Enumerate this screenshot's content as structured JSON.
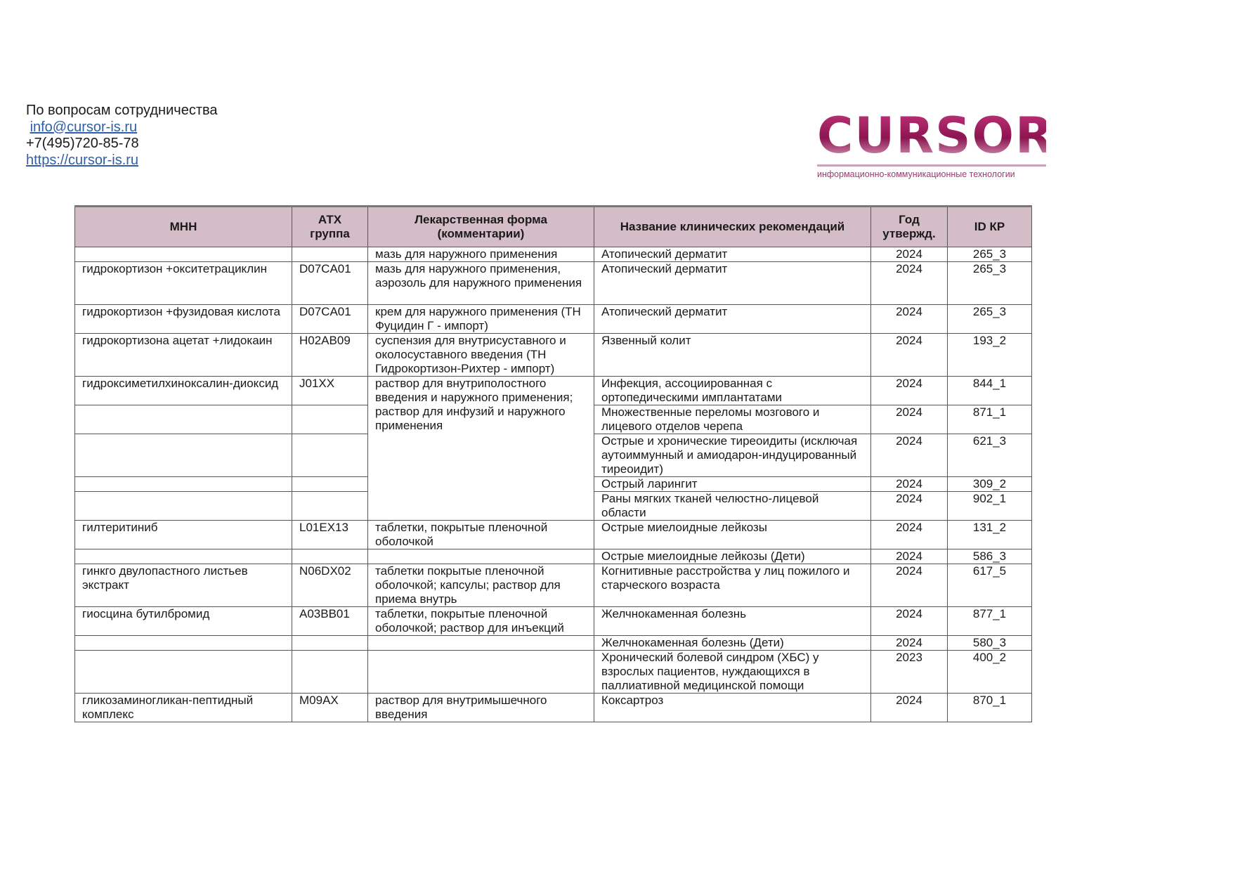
{
  "contact": {
    "heading": "По вопросам сотрудничества",
    "email": "info@cursor-is.ru",
    "phone": "+7(495)720-85-78",
    "website": "https://cursor-is.ru"
  },
  "logo": {
    "word": "CURSOR",
    "tagline": "информационно-коммуникационные технологии",
    "color": "#9b1b5f"
  },
  "table": {
    "header_bg": "#d5bdc8",
    "columns": [
      "МНН",
      "АТХ группа",
      "Лекарственная форма (комментарии)",
      "Название клинических рекомендаций",
      "Год утвержд.",
      "ID КР"
    ],
    "rows": [
      {
        "mnn": "",
        "atc": "",
        "form": "мазь для наружного применения",
        "rec": "Атопический дерматит",
        "year": "2024",
        "id": "265_3"
      },
      {
        "mnn": "гидрокортизон +окситетрациклин",
        "atc": "D07CA01",
        "form": "мазь для наружного применения, аэрозоль для наружного применения",
        "rec": "Атопический дерматит",
        "year": "2024",
        "id": "265_3"
      },
      {
        "mnn": "гидрокортизон +фузидовая кислота",
        "atc": "D07CA01",
        "form": "крем для наружного применения (ТН Фуцидин Г - импорт)",
        "rec": "Атопический дерматит",
        "year": "2024",
        "id": "265_3"
      },
      {
        "mnn": "гидрокортизона ацетат +лидокаин",
        "atc": "H02AB09",
        "form": "суспензия для внутрисуставного и околосуставного введения (ТН Гидрокортизон-Рихтер - импорт)",
        "rec": "Язвенный колит",
        "year": "2024",
        "id": "193_2"
      },
      {
        "mnn": "гидроксиметилхиноксалин-диоксид",
        "atc": "J01XX",
        "form": "раствор для внутриполостного введения и наружного применения; раствор для инфузий и наружного применения",
        "rec": "Инфекция, ассоциированная с ортопедическими имплантатами",
        "year": "2024",
        "id": "844_1"
      },
      {
        "mnn": "",
        "atc": "",
        "rec": "Множественные переломы мозгового и лицевого отделов черепа",
        "year": "2024",
        "id": "871_1"
      },
      {
        "mnn": "",
        "atc": "",
        "rec": "Острые и хронические тиреоидиты (исключая аутоиммунный и амиодарон-индуцированный тиреоидит)",
        "year": "2024",
        "id": "621_3"
      },
      {
        "mnn": "",
        "atc": "",
        "rec": "Острый ларингит",
        "year": "2024",
        "id": "309_2"
      },
      {
        "mnn": "",
        "atc": "",
        "rec": "Раны мягких тканей челюстно-лицевой области",
        "year": "2024",
        "id": "902_1"
      },
      {
        "mnn": "гилтеритиниб",
        "atc": "L01EX13",
        "form": "таблетки, покрытые пленочной оболочкой",
        "rec": "Острые миелоидные лейкозы",
        "year": "2024",
        "id": "131_2"
      },
      {
        "mnn": "",
        "atc": "",
        "form": "",
        "rec": "Острые миелоидные лейкозы (Дети)",
        "year": "2024",
        "id": "586_3"
      },
      {
        "mnn": "гинкго двулопастного листьев экстракт",
        "atc": "N06DX02",
        "form": "таблетки покрытые пленочной оболочкой; капсулы; раствор для приема внутрь",
        "rec": "Когнитивные расстройства у лиц пожилого и старческого возраста",
        "year": "2024",
        "id": "617_5"
      },
      {
        "mnn": "гиосцина бутилбромид",
        "atc": "A03BB01",
        "form": "таблетки, покрытые пленочной оболочкой; раствор для инъекций",
        "rec": "Желчнокаменная болезнь",
        "year": "2024",
        "id": "877_1"
      },
      {
        "mnn": "",
        "atc": "",
        "form": "",
        "rec": "Желчнокаменная болезнь (Дети)",
        "year": "2024",
        "id": "580_3"
      },
      {
        "mnn": "",
        "atc": "",
        "form": "",
        "rec": "Хронический болевой синдром (ХБС) у взрослых пациентов, нуждающихся в паллиативной медицинской помощи",
        "year": "2023",
        "id": "400_2"
      },
      {
        "mnn": "гликозаминогликан-пептидный комплекс",
        "atc": "M09AX",
        "form": "раствор для внутримышечного введения",
        "rec": "Коксартроз",
        "year": "2024",
        "id": "870_1"
      }
    ]
  }
}
